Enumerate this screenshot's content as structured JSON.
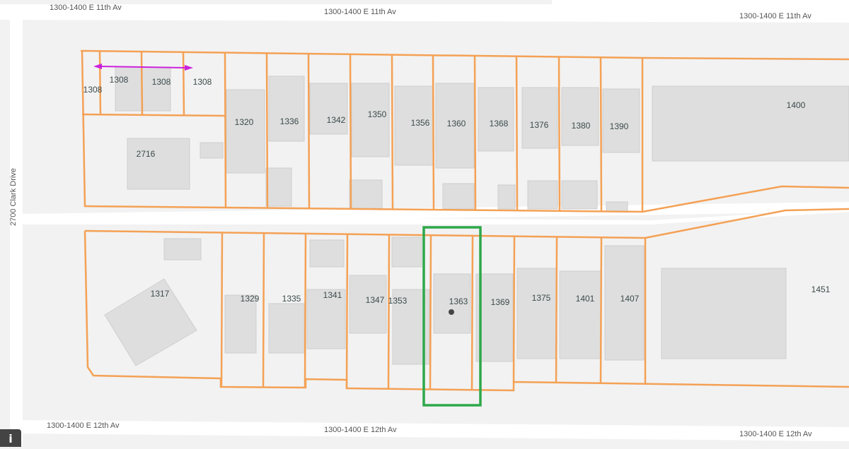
{
  "streets": {
    "north": "1300-1400 E 11th Av",
    "south": "1300-1400 E 12th Av",
    "west": "2700 Clark Drive"
  },
  "north_lots": [
    "1308",
    "1308",
    "1308",
    "1308",
    "2716",
    "1320",
    "1336",
    "1342",
    "1350",
    "1356",
    "1360",
    "1368",
    "1376",
    "1380",
    "1390",
    "1400"
  ],
  "south_lots": [
    "1317",
    "1329",
    "1335",
    "1341",
    "1347",
    "1353",
    "1363",
    "1369",
    "1375",
    "1401",
    "1407",
    "1451"
  ],
  "selected_lot": "1363",
  "colors": {
    "lot_line": "#f4a155",
    "selection": "#2ea84a",
    "measure": "#cc22dd",
    "building": "#dedede"
  },
  "info_icon": "info-icon"
}
